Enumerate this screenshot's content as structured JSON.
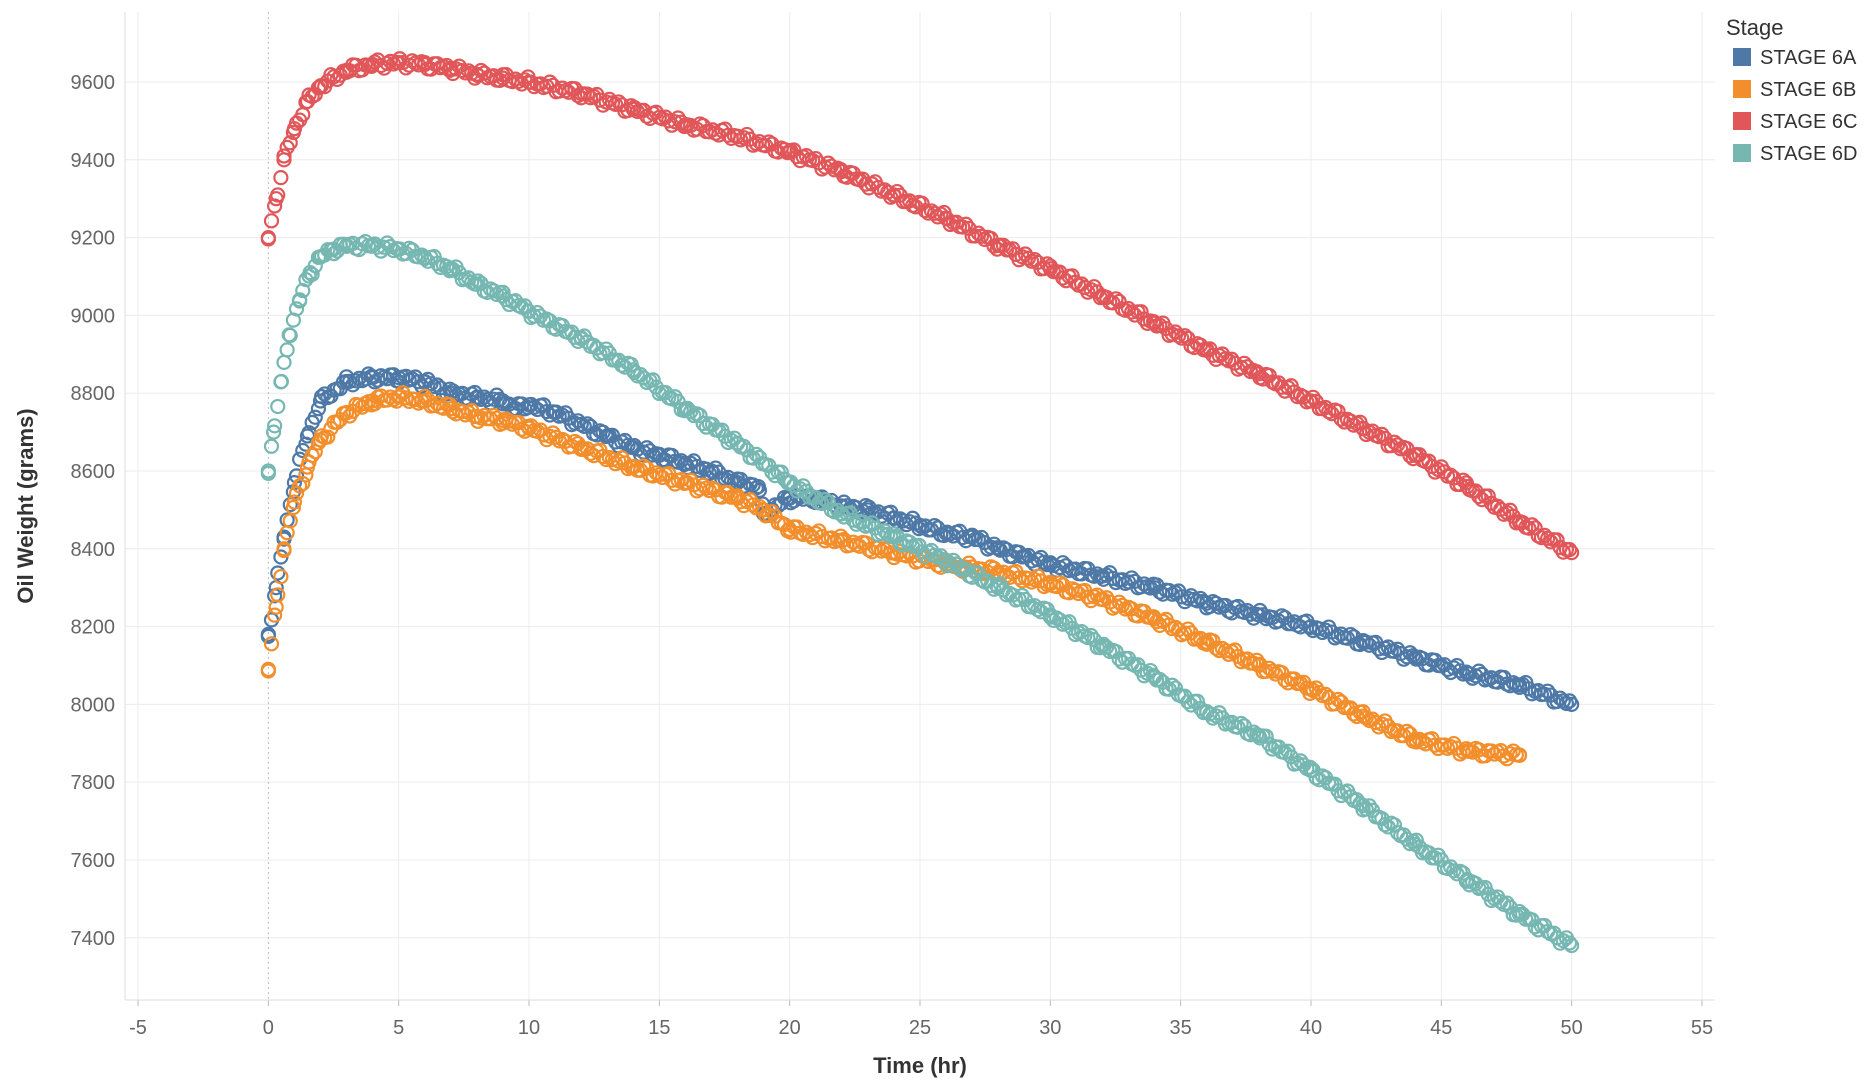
{
  "chart_data": {
    "type": "scatter",
    "title": "",
    "xlabel": "Time (hr)",
    "ylabel": "Oil Weight (grams)",
    "xlim": [
      -5.5,
      55.5
    ],
    "ylim": [
      7240,
      9780
    ],
    "x_ticks": [
      -5,
      0,
      5,
      10,
      15,
      20,
      25,
      30,
      35,
      40,
      45,
      50,
      55
    ],
    "y_ticks": [
      7400,
      7600,
      7800,
      8000,
      8200,
      8400,
      8600,
      8800,
      9000,
      9200,
      9400,
      9600
    ],
    "grid": true,
    "legend": {
      "title": "Stage",
      "placement": "top-right"
    },
    "series": [
      {
        "name": "STAGE 6A",
        "color": "#4e79a7",
        "x": [
          0,
          0.3,
          0.6,
          1,
          1.5,
          2,
          3,
          4,
          5,
          6,
          7,
          8,
          9,
          9.5,
          10,
          11,
          12,
          13,
          14,
          15,
          16,
          17,
          18,
          18.8,
          19,
          20,
          21,
          22,
          23,
          24,
          25,
          26,
          27,
          28,
          29,
          30,
          32,
          34,
          36,
          38,
          40,
          42,
          44,
          46,
          48,
          50
        ],
        "y": [
          8180,
          8300,
          8430,
          8570,
          8690,
          8780,
          8830,
          8840,
          8840,
          8830,
          8800,
          8790,
          8780,
          8760,
          8770,
          8750,
          8720,
          8690,
          8660,
          8640,
          8620,
          8600,
          8570,
          8560,
          8490,
          8530,
          8530,
          8510,
          8500,
          8480,
          8460,
          8440,
          8430,
          8400,
          8380,
          8360,
          8330,
          8300,
          8260,
          8230,
          8200,
          8160,
          8120,
          8080,
          8050,
          8000
        ]
      },
      {
        "name": "STAGE 6B",
        "color": "#f28e2b",
        "x": [
          0,
          0.3,
          0.6,
          1,
          1.5,
          2,
          3,
          4,
          5,
          6,
          7,
          8,
          9,
          10,
          12,
          14,
          16,
          18,
          19,
          20,
          22,
          24,
          26,
          28,
          30,
          32,
          34,
          36,
          38,
          40,
          42,
          44,
          46,
          48
        ],
        "y": [
          8090,
          8250,
          8400,
          8520,
          8610,
          8680,
          8750,
          8780,
          8790,
          8780,
          8760,
          8740,
          8730,
          8710,
          8660,
          8610,
          8570,
          8530,
          8500,
          8450,
          8420,
          8390,
          8360,
          8340,
          8310,
          8270,
          8220,
          8160,
          8100,
          8040,
          7970,
          7910,
          7880,
          7870
        ]
      },
      {
        "name": "STAGE 6C",
        "color": "#e15759",
        "x": [
          0,
          0.3,
          0.6,
          1,
          1.5,
          2,
          3,
          4,
          5,
          6,
          7,
          8,
          9,
          10,
          12,
          14,
          16,
          18,
          20,
          22,
          24,
          26,
          28,
          30,
          32,
          34,
          36,
          38,
          40,
          42,
          44,
          46,
          48,
          50
        ],
        "y": [
          9200,
          9300,
          9400,
          9480,
          9550,
          9590,
          9630,
          9645,
          9650,
          9645,
          9635,
          9620,
          9610,
          9600,
          9570,
          9530,
          9490,
          9460,
          9420,
          9370,
          9310,
          9250,
          9180,
          9120,
          9050,
          8980,
          8910,
          8850,
          8780,
          8710,
          8640,
          8560,
          8470,
          8390
        ]
      },
      {
        "name": "STAGE 6D",
        "color": "#76b7b2",
        "x": [
          0,
          0.2,
          0.5,
          0.8,
          1.2,
          1.6,
          2,
          2.5,
          3,
          4,
          5,
          6,
          7,
          8,
          9,
          10,
          12,
          14,
          16,
          18,
          20,
          22,
          24,
          26,
          28,
          30,
          32,
          34,
          36,
          38,
          40,
          42,
          44,
          46,
          48,
          50
        ],
        "y": [
          8600,
          8700,
          8830,
          8950,
          9040,
          9110,
          9150,
          9170,
          9180,
          9180,
          9170,
          9150,
          9120,
          9080,
          9050,
          9010,
          8940,
          8860,
          8760,
          8670,
          8570,
          8490,
          8430,
          8370,
          8300,
          8230,
          8150,
          8070,
          7980,
          7920,
          7830,
          7740,
          7640,
          7550,
          7460,
          7380
        ]
      }
    ]
  }
}
